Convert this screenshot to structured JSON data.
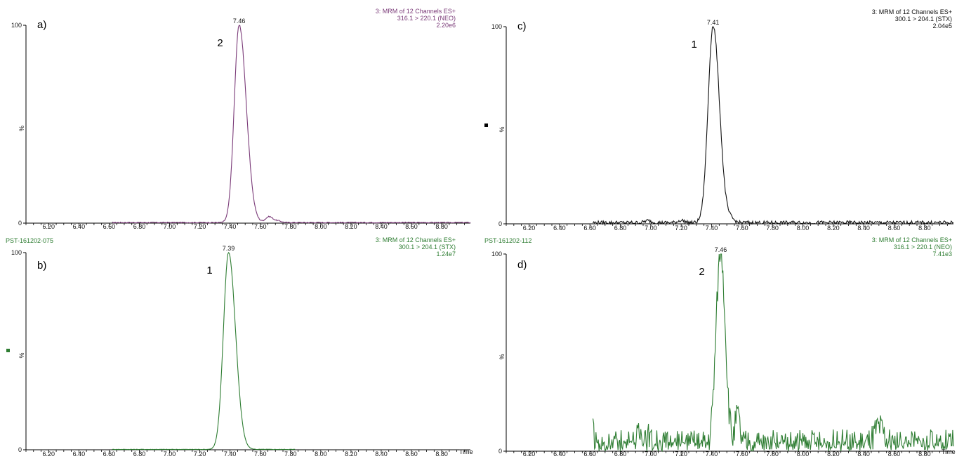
{
  "chart_data": [
    {
      "panel_id": "a",
      "panel_label": "a)",
      "type": "line",
      "sample_label": "",
      "header": [
        "3: MRM of 12 Channels ES+",
        "316.1 > 220.1 (NEO)",
        "2.20e6"
      ],
      "color": "#7a3a78",
      "y_axis_label": "%",
      "x_axis_label": "",
      "xlim": [
        6.05,
        8.99
      ],
      "ylim": [
        0,
        100
      ],
      "y_ticks": [
        "0",
        "100"
      ],
      "x_ticks": [
        "6.20",
        "6.40",
        "6.60",
        "6.80",
        "7.00",
        "7.20",
        "7.40",
        "7.60",
        "7.80",
        "8.00",
        "8.20",
        "8.40",
        "8.60",
        "8.80"
      ],
      "peak_rt_label": "7.46",
      "peak_rt": 7.46,
      "peak_number": "2",
      "trace_range": [
        6.62,
        8.99
      ],
      "peak_sigma_left": 0.032,
      "peak_sigma_right": 0.047,
      "baseline": 0.3,
      "noise": 0.25,
      "extra_bumps": [
        [
          7.66,
          3.0,
          0.025
        ],
        [
          7.72,
          0.8,
          0.02
        ]
      ],
      "marker": false
    },
    {
      "panel_id": "b",
      "panel_label": "b)",
      "type": "line",
      "sample_label": "PST-161202-075",
      "header": [
        "3: MRM of 12 Channels ES+",
        "300.1 > 204.1 (STX)",
        "1.24e7"
      ],
      "color": "#2e7d32",
      "y_axis_label": "%",
      "x_axis_label": "Time",
      "xlim": [
        6.05,
        8.99
      ],
      "ylim": [
        0,
        100
      ],
      "y_ticks": [
        "0",
        "100"
      ],
      "x_ticks": [
        "6.20",
        "6.40",
        "6.60",
        "6.80",
        "7.00",
        "7.20",
        "7.40",
        "7.60",
        "7.80",
        "8.00",
        "8.20",
        "8.40",
        "8.60",
        "8.80"
      ],
      "peak_rt_label": "7.39",
      "peak_rt": 7.39,
      "peak_number": "1",
      "trace_range": [
        6.62,
        7.83
      ],
      "peak_sigma_left": 0.034,
      "peak_sigma_right": 0.046,
      "baseline": 0.2,
      "noise": 0.1,
      "extra_bumps": [],
      "marker": true
    },
    {
      "panel_id": "c",
      "panel_label": "c)",
      "type": "line",
      "sample_label": "",
      "header": [
        "3: MRM of 12 Channels ES+",
        "300.1 > 204.1 (STX)",
        "2.04e5"
      ],
      "color": "#111111",
      "y_axis_label": "%",
      "x_axis_label": "",
      "xlim": [
        6.05,
        8.99
      ],
      "ylim": [
        0,
        100
      ],
      "y_ticks": [
        "0",
        "100"
      ],
      "x_ticks": [
        "6.20",
        "6.40",
        "6.60",
        "6.80",
        "7.00",
        "7.20",
        "7.40",
        "7.60",
        "7.80",
        "8.00",
        "8.20",
        "8.40",
        "8.60",
        "8.80"
      ],
      "peak_rt_label": "7.41",
      "peak_rt": 7.41,
      "peak_number": "1",
      "trace_range": [
        6.62,
        8.99
      ],
      "peak_sigma_left": 0.033,
      "peak_sigma_right": 0.042,
      "baseline": 0.6,
      "noise": 0.9,
      "extra_bumps": [
        [
          7.53,
          1.5,
          0.02
        ],
        [
          6.98,
          1.0,
          0.02
        ],
        [
          7.2,
          1.2,
          0.02
        ]
      ],
      "marker": true
    },
    {
      "panel_id": "d",
      "panel_label": "d)",
      "type": "line",
      "sample_label": "PST-161202-112",
      "header": [
        "3: MRM of 12 Channels ES+",
        "316.1 > 220.1 (NEO)",
        "7.41e3"
      ],
      "color": "#2e7d32",
      "y_axis_label": "%",
      "x_axis_label": "Time",
      "xlim": [
        6.05,
        8.99
      ],
      "ylim": [
        0,
        100
      ],
      "y_ticks": [
        "0",
        "100"
      ],
      "x_ticks": [
        "6.20",
        "6.40",
        "6.60",
        "6.80",
        "7.00",
        "7.20",
        "7.40",
        "7.60",
        "7.80",
        "8.00",
        "8.20",
        "8.40",
        "8.60",
        "8.80"
      ],
      "peak_rt_label": "7.46",
      "peak_rt": 7.46,
      "peak_number": "2",
      "trace_range": [
        6.62,
        8.99
      ],
      "peak_sigma_left": 0.03,
      "peak_sigma_right": 0.03,
      "baseline": 3.0,
      "noise": 5.0,
      "extra_bumps": [
        [
          6.62,
          12,
          0.006
        ],
        [
          6.95,
          7,
          0.03
        ],
        [
          7.57,
          15,
          0.015
        ],
        [
          8.5,
          8,
          0.03
        ]
      ],
      "marker": false
    }
  ]
}
